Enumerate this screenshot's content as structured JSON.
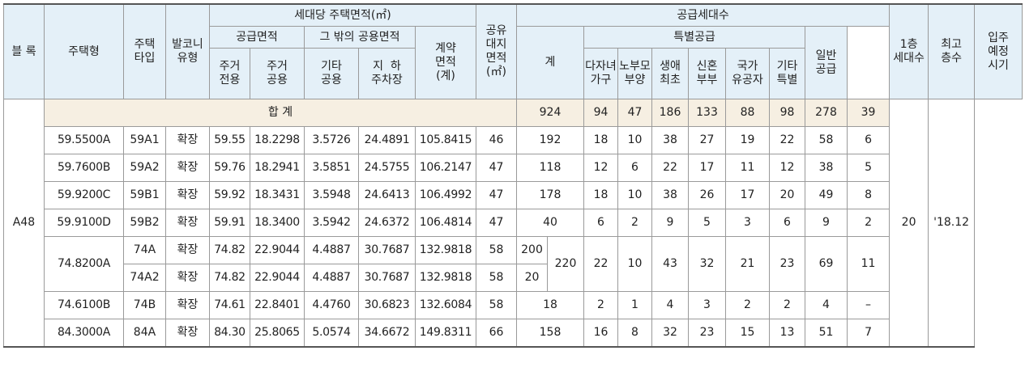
{
  "header": {
    "block": "블 록",
    "housing_type": "주택형",
    "type_line1": "주택",
    "type_line2": "타입",
    "balcony_line1": "발코니",
    "balcony_line2": "유형",
    "area_group": "세대당 주택면적(㎡)",
    "supply_area": "공급면적",
    "other_common": "그 밖의 공용면적",
    "res_exclusive": [
      "주거",
      "전용"
    ],
    "res_common": [
      "주거",
      "공용"
    ],
    "etc_common": [
      "기타",
      "공용"
    ],
    "underground_parking": [
      "지  하",
      "주차장"
    ],
    "contract_area": [
      "계약",
      "면적",
      "(계)"
    ],
    "land_share": [
      "공유",
      "대지",
      "면적",
      "(㎡)"
    ],
    "supply_units_group": "공급세대수",
    "total": "계",
    "special_supply": "특별공급",
    "multi_child": [
      "다자녀",
      "가구"
    ],
    "elder_support": [
      "노부모",
      "부양"
    ],
    "first_life": [
      "생애",
      "최초"
    ],
    "newlywed": [
      "신혼",
      "부부"
    ],
    "national_merit": [
      "국가",
      "유공자"
    ],
    "etc_special": [
      "기타",
      "특별"
    ],
    "general_supply": [
      "일반",
      "공급"
    ],
    "first_floor_units": [
      "1층",
      "세대수"
    ],
    "max_floors": [
      "최고",
      "층수"
    ],
    "move_in": [
      "입주",
      "예정",
      "시기"
    ]
  },
  "block_name": "A48",
  "max_floor_value": "20",
  "move_in_value": "'18.12",
  "totals": {
    "label": "합 계",
    "total": "924",
    "multi_child": "94",
    "elder_support": "47",
    "first_life": "186",
    "newlywed": "133",
    "national_merit": "88",
    "etc_special": "98",
    "general": "278",
    "first_floor": "39"
  },
  "rows": [
    {
      "housing_type": "59.5500A",
      "type": "59A1",
      "balcony": "확장",
      "exclusive": "59.55",
      "res_common": "18.2298",
      "etc_common": "3.5726",
      "parking": "24.4891",
      "contract": "105.8415",
      "land": "46",
      "total": "192",
      "multi_child": "18",
      "elder": "10",
      "first_life": "38",
      "newlywed": "27",
      "merit": "19",
      "etc": "22",
      "general": "58",
      "first_floor": "6"
    },
    {
      "housing_type": "59.7600B",
      "type": "59A2",
      "balcony": "확장",
      "exclusive": "59.76",
      "res_common": "18.2941",
      "etc_common": "3.5851",
      "parking": "24.5755",
      "contract": "106.2147",
      "land": "47",
      "total": "118",
      "multi_child": "12",
      "elder": "6",
      "first_life": "22",
      "newlywed": "17",
      "merit": "11",
      "etc": "12",
      "general": "38",
      "first_floor": "5"
    },
    {
      "housing_type": "59.9200C",
      "type": "59B1",
      "balcony": "확장",
      "exclusive": "59.92",
      "res_common": "18.3431",
      "etc_common": "3.5948",
      "parking": "24.6413",
      "contract": "106.4992",
      "land": "47",
      "total": "178",
      "multi_child": "18",
      "elder": "10",
      "first_life": "38",
      "newlywed": "26",
      "merit": "17",
      "etc": "20",
      "general": "49",
      "first_floor": "8"
    },
    {
      "housing_type": "59.9100D",
      "type": "59B2",
      "balcony": "확장",
      "exclusive": "59.91",
      "res_common": "18.3400",
      "etc_common": "3.5942",
      "parking": "24.6372",
      "contract": "106.4814",
      "land": "47",
      "total": "40",
      "multi_child": "6",
      "elder": "2",
      "first_life": "9",
      "newlywed": "5",
      "merit": "3",
      "etc": "6",
      "general": "9",
      "first_floor": "2"
    }
  ],
  "group_74": {
    "housing_type": "74.8200A",
    "combined_total": "220",
    "multi_child": "22",
    "elder": "10",
    "first_life": "43",
    "newlywed": "32",
    "merit": "21",
    "etc": "23",
    "general": "69",
    "first_floor": "11",
    "sub": [
      {
        "type": "74A",
        "balcony": "확장",
        "exclusive": "74.82",
        "res_common": "22.9044",
        "etc_common": "4.4887",
        "parking": "30.7687",
        "contract": "132.9818",
        "land": "58",
        "sub_total": "200"
      },
      {
        "type": "74A2",
        "balcony": "확장",
        "exclusive": "74.82",
        "res_common": "22.9044",
        "etc_common": "4.4887",
        "parking": "30.7687",
        "contract": "132.9818",
        "land": "58",
        "sub_total": "20"
      }
    ]
  },
  "rows_tail": [
    {
      "housing_type": "74.6100B",
      "type": "74B",
      "balcony": "확장",
      "exclusive": "74.61",
      "res_common": "22.8401",
      "etc_common": "4.4760",
      "parking": "30.6823",
      "contract": "132.6084",
      "land": "58",
      "total": "18",
      "multi_child": "2",
      "elder": "1",
      "first_life": "4",
      "newlywed": "3",
      "merit": "2",
      "etc": "2",
      "general": "4",
      "first_floor": "–"
    },
    {
      "housing_type": "84.3000A",
      "type": "84A",
      "balcony": "확장",
      "exclusive": "84.30",
      "res_common": "25.8065",
      "etc_common": "5.0574",
      "parking": "34.6672",
      "contract": "149.8311",
      "land": "66",
      "total": "158",
      "multi_child": "16",
      "elder": "8",
      "first_life": "32",
      "newlywed": "23",
      "merit": "15",
      "etc": "13",
      "general": "51",
      "first_floor": "7"
    }
  ]
}
